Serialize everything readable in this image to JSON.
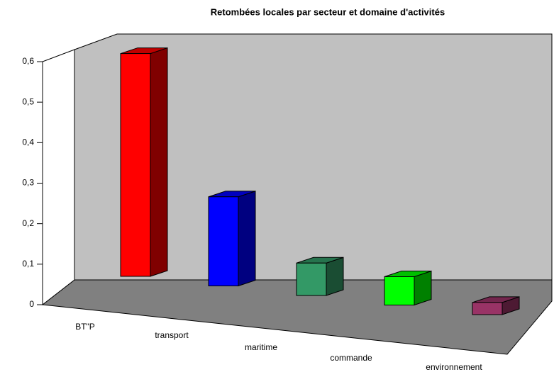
{
  "chart_data": {
    "type": "bar3d",
    "title": "Retombées locales par secteur et domaine d'activités",
    "categories": [
      "BT\"P",
      "transport",
      "maritime",
      "commande",
      "environnement"
    ],
    "values": [
      0.55,
      0.22,
      0.08,
      0.07,
      0.03
    ],
    "colors": [
      "#ff0000",
      "#0000ff",
      "#339966",
      "#00ff00",
      "#993366"
    ],
    "ylim": [
      0,
      0.6
    ],
    "yticks": [
      0,
      {
        "value": 0.1,
        "label": "0,1"
      },
      {
        "value": 0.2,
        "label": "0,2"
      },
      {
        "value": 0.3,
        "label": "0,3"
      },
      {
        "value": 0.4,
        "label": "0,4"
      },
      {
        "value": 0.5,
        "label": "0,5"
      },
      {
        "value": 0.6,
        "label": "0,6"
      }
    ],
    "grid": false
  }
}
